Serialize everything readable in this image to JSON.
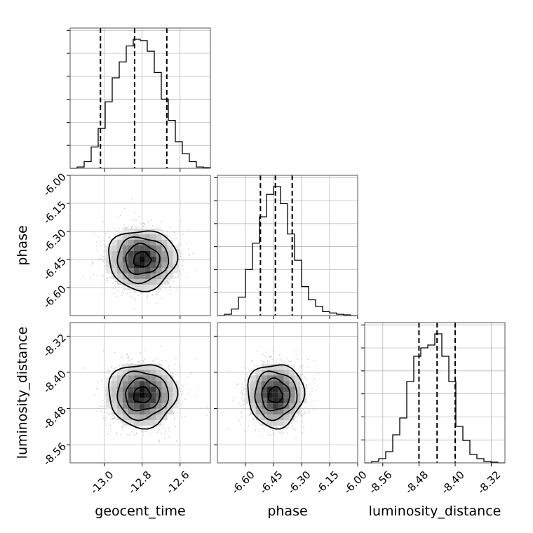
{
  "figure": {
    "type": "corner-plot",
    "parameters": [
      "geocent_time",
      "phase",
      "luminosity_distance"
    ]
  },
  "chart_data": [
    {
      "type": "histogram",
      "panel": "geocent_time marginal",
      "xlim": [
        -13.18,
        -12.44
      ],
      "bins": [
        -13.18,
        -13.143,
        -13.106,
        -13.069,
        -13.032,
        -12.995,
        -12.958,
        -12.921,
        -12.884,
        -12.847,
        -12.81,
        -12.773,
        -12.736,
        -12.699,
        -12.662,
        -12.625,
        -12.588,
        -12.551,
        -12.514,
        -12.477,
        -12.44
      ],
      "counts": [
        0,
        0.01,
        0.05,
        0.16,
        0.3,
        0.5,
        0.68,
        0.8,
        0.92,
        0.97,
        0.96,
        0.88,
        0.72,
        0.52,
        0.36,
        0.2,
        0.11,
        0.05,
        0.01,
        0.005
      ],
      "quantiles": [
        -13.02,
        -12.84,
        -12.67
      ],
      "xticks": [
        "-13.0",
        "-12.8",
        "-12.6"
      ],
      "grid": true
    },
    {
      "type": "histogram",
      "panel": "phase marginal",
      "xlim": [
        -6.75,
        -6.0
      ],
      "counts": [
        0,
        0.01,
        0.05,
        0.14,
        0.35,
        0.55,
        0.75,
        0.92,
        0.98,
        0.85,
        0.62,
        0.42,
        0.22,
        0.12,
        0.07,
        0.03,
        0.02,
        0.01,
        0.005,
        0
      ],
      "quantiles": [
        -6.52,
        -6.44,
        -6.35
      ],
      "xticks": [
        "-6.60",
        "-6.45",
        "-6.30",
        "-6.15",
        "-6.00"
      ],
      "xlabel": "phase",
      "grid": true
    },
    {
      "type": "histogram",
      "panel": "luminosity_distance marginal",
      "xlim": [
        -8.6,
        -8.29
      ],
      "counts": [
        0,
        0.01,
        0.03,
        0.08,
        0.2,
        0.32,
        0.58,
        0.76,
        0.82,
        0.84,
        0.92,
        0.76,
        0.58,
        0.26,
        0.16,
        0.06,
        0.03,
        0.01,
        0.005,
        0
      ],
      "quantiles": [
        -8.48,
        -8.44,
        -8.4
      ],
      "xticks": [
        "-8.56",
        "-8.48",
        "-8.40",
        "-8.32"
      ],
      "xlabel": "luminosity_distance",
      "grid": true
    },
    {
      "type": "scatter",
      "panel": "phase vs geocent_time",
      "x_param": "geocent_time",
      "y_param": "phase",
      "xlim": [
        -13.18,
        -12.44
      ],
      "ylim": [
        -6.75,
        -6.0
      ],
      "center": [
        -12.8,
        -6.45
      ],
      "sigma": [
        0.09,
        0.08
      ],
      "contour_levels": [
        "0.5",
        "1.0",
        "1.5",
        "2.0"
      ],
      "yticks": [
        "-6.60",
        "-6.45",
        "-6.30",
        "-6.15",
        "-6.00"
      ],
      "ylabel": "phase",
      "grid": true
    },
    {
      "type": "scatter",
      "panel": "luminosity_distance vs geocent_time",
      "x_param": "geocent_time",
      "y_param": "luminosity_distance",
      "xlim": [
        -13.18,
        -12.44
      ],
      "ylim": [
        -8.6,
        -8.29
      ],
      "center": [
        -12.8,
        -8.45
      ],
      "sigma": [
        0.09,
        0.035
      ],
      "contour_levels": [
        "0.5",
        "1.0",
        "1.5",
        "2.0"
      ],
      "xticks": [
        "-13.0",
        "-12.8",
        "-12.6"
      ],
      "yticks": [
        "-8.56",
        "-8.48",
        "-8.40",
        "-8.32"
      ],
      "xlabel": "geocent_time",
      "ylabel": "luminosity_distance",
      "grid": true
    },
    {
      "type": "scatter",
      "panel": "luminosity_distance vs phase",
      "x_param": "phase",
      "y_param": "luminosity_distance",
      "xlim": [
        -6.75,
        -6.0
      ],
      "ylim": [
        -8.6,
        -8.29
      ],
      "center": [
        -6.44,
        -8.45
      ],
      "sigma": [
        0.075,
        0.035
      ],
      "contour_levels": [
        "0.5",
        "1.0",
        "1.5",
        "2.0"
      ],
      "xticks": [
        "-6.60",
        "-6.45",
        "-6.30",
        "-6.15",
        "-6.00"
      ],
      "grid": true
    }
  ],
  "colors": {
    "line": "#000000",
    "grid": "#b0b0b0",
    "scatter": "#a0a0a0"
  }
}
